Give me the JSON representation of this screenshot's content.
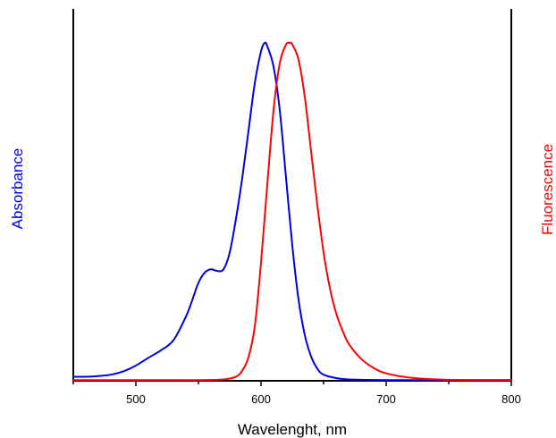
{
  "chart_data": {
    "type": "line",
    "title": "",
    "xlabel": "Wavelenght, nm",
    "ylabel_left": "Absorbance",
    "ylabel_right": "Fluorescence",
    "xlim": [
      450,
      800
    ],
    "ylim": [
      0,
      1.0
    ],
    "x_ticks": [
      500,
      600,
      700,
      800
    ],
    "grid": false,
    "legend": "none",
    "colors": {
      "absorbance": "#0000dd",
      "fluorescence": "#ff0000",
      "axes": "#000000"
    },
    "series": [
      {
        "name": "Absorbance",
        "axis": "left",
        "color": "#0000dd",
        "x": [
          450,
          460,
          470,
          480,
          490,
          500,
          510,
          520,
          530,
          540,
          545,
          550,
          555,
          560,
          565,
          570,
          575,
          580,
          585,
          590,
          595,
          600,
          603,
          605,
          610,
          615,
          620,
          625,
          630,
          635,
          640,
          645,
          650,
          660,
          670,
          680,
          700,
          750,
          800
        ],
        "y": [
          0.012,
          0.012,
          0.014,
          0.018,
          0.028,
          0.045,
          0.068,
          0.09,
          0.12,
          0.19,
          0.238,
          0.29,
          0.32,
          0.33,
          0.325,
          0.33,
          0.38,
          0.48,
          0.6,
          0.74,
          0.88,
          0.975,
          1.0,
          0.99,
          0.93,
          0.8,
          0.6,
          0.4,
          0.24,
          0.135,
          0.072,
          0.036,
          0.018,
          0.008,
          0.004,
          0.003,
          0.002,
          0.002,
          0.002
        ]
      },
      {
        "name": "Fluorescence",
        "axis": "right",
        "color": "#ff0000",
        "x": [
          450,
          500,
          550,
          570,
          580,
          585,
          590,
          595,
          600,
          605,
          610,
          615,
          620,
          623,
          625,
          630,
          635,
          640,
          645,
          650,
          655,
          660,
          665,
          670,
          680,
          690,
          700,
          720,
          750,
          800
        ],
        "y": [
          0.002,
          0.002,
          0.002,
          0.004,
          0.012,
          0.03,
          0.07,
          0.16,
          0.35,
          0.58,
          0.8,
          0.94,
          0.995,
          1.0,
          0.995,
          0.95,
          0.84,
          0.68,
          0.52,
          0.38,
          0.275,
          0.2,
          0.15,
          0.11,
          0.065,
          0.038,
          0.022,
          0.009,
          0.003,
          0.002
        ]
      }
    ]
  }
}
